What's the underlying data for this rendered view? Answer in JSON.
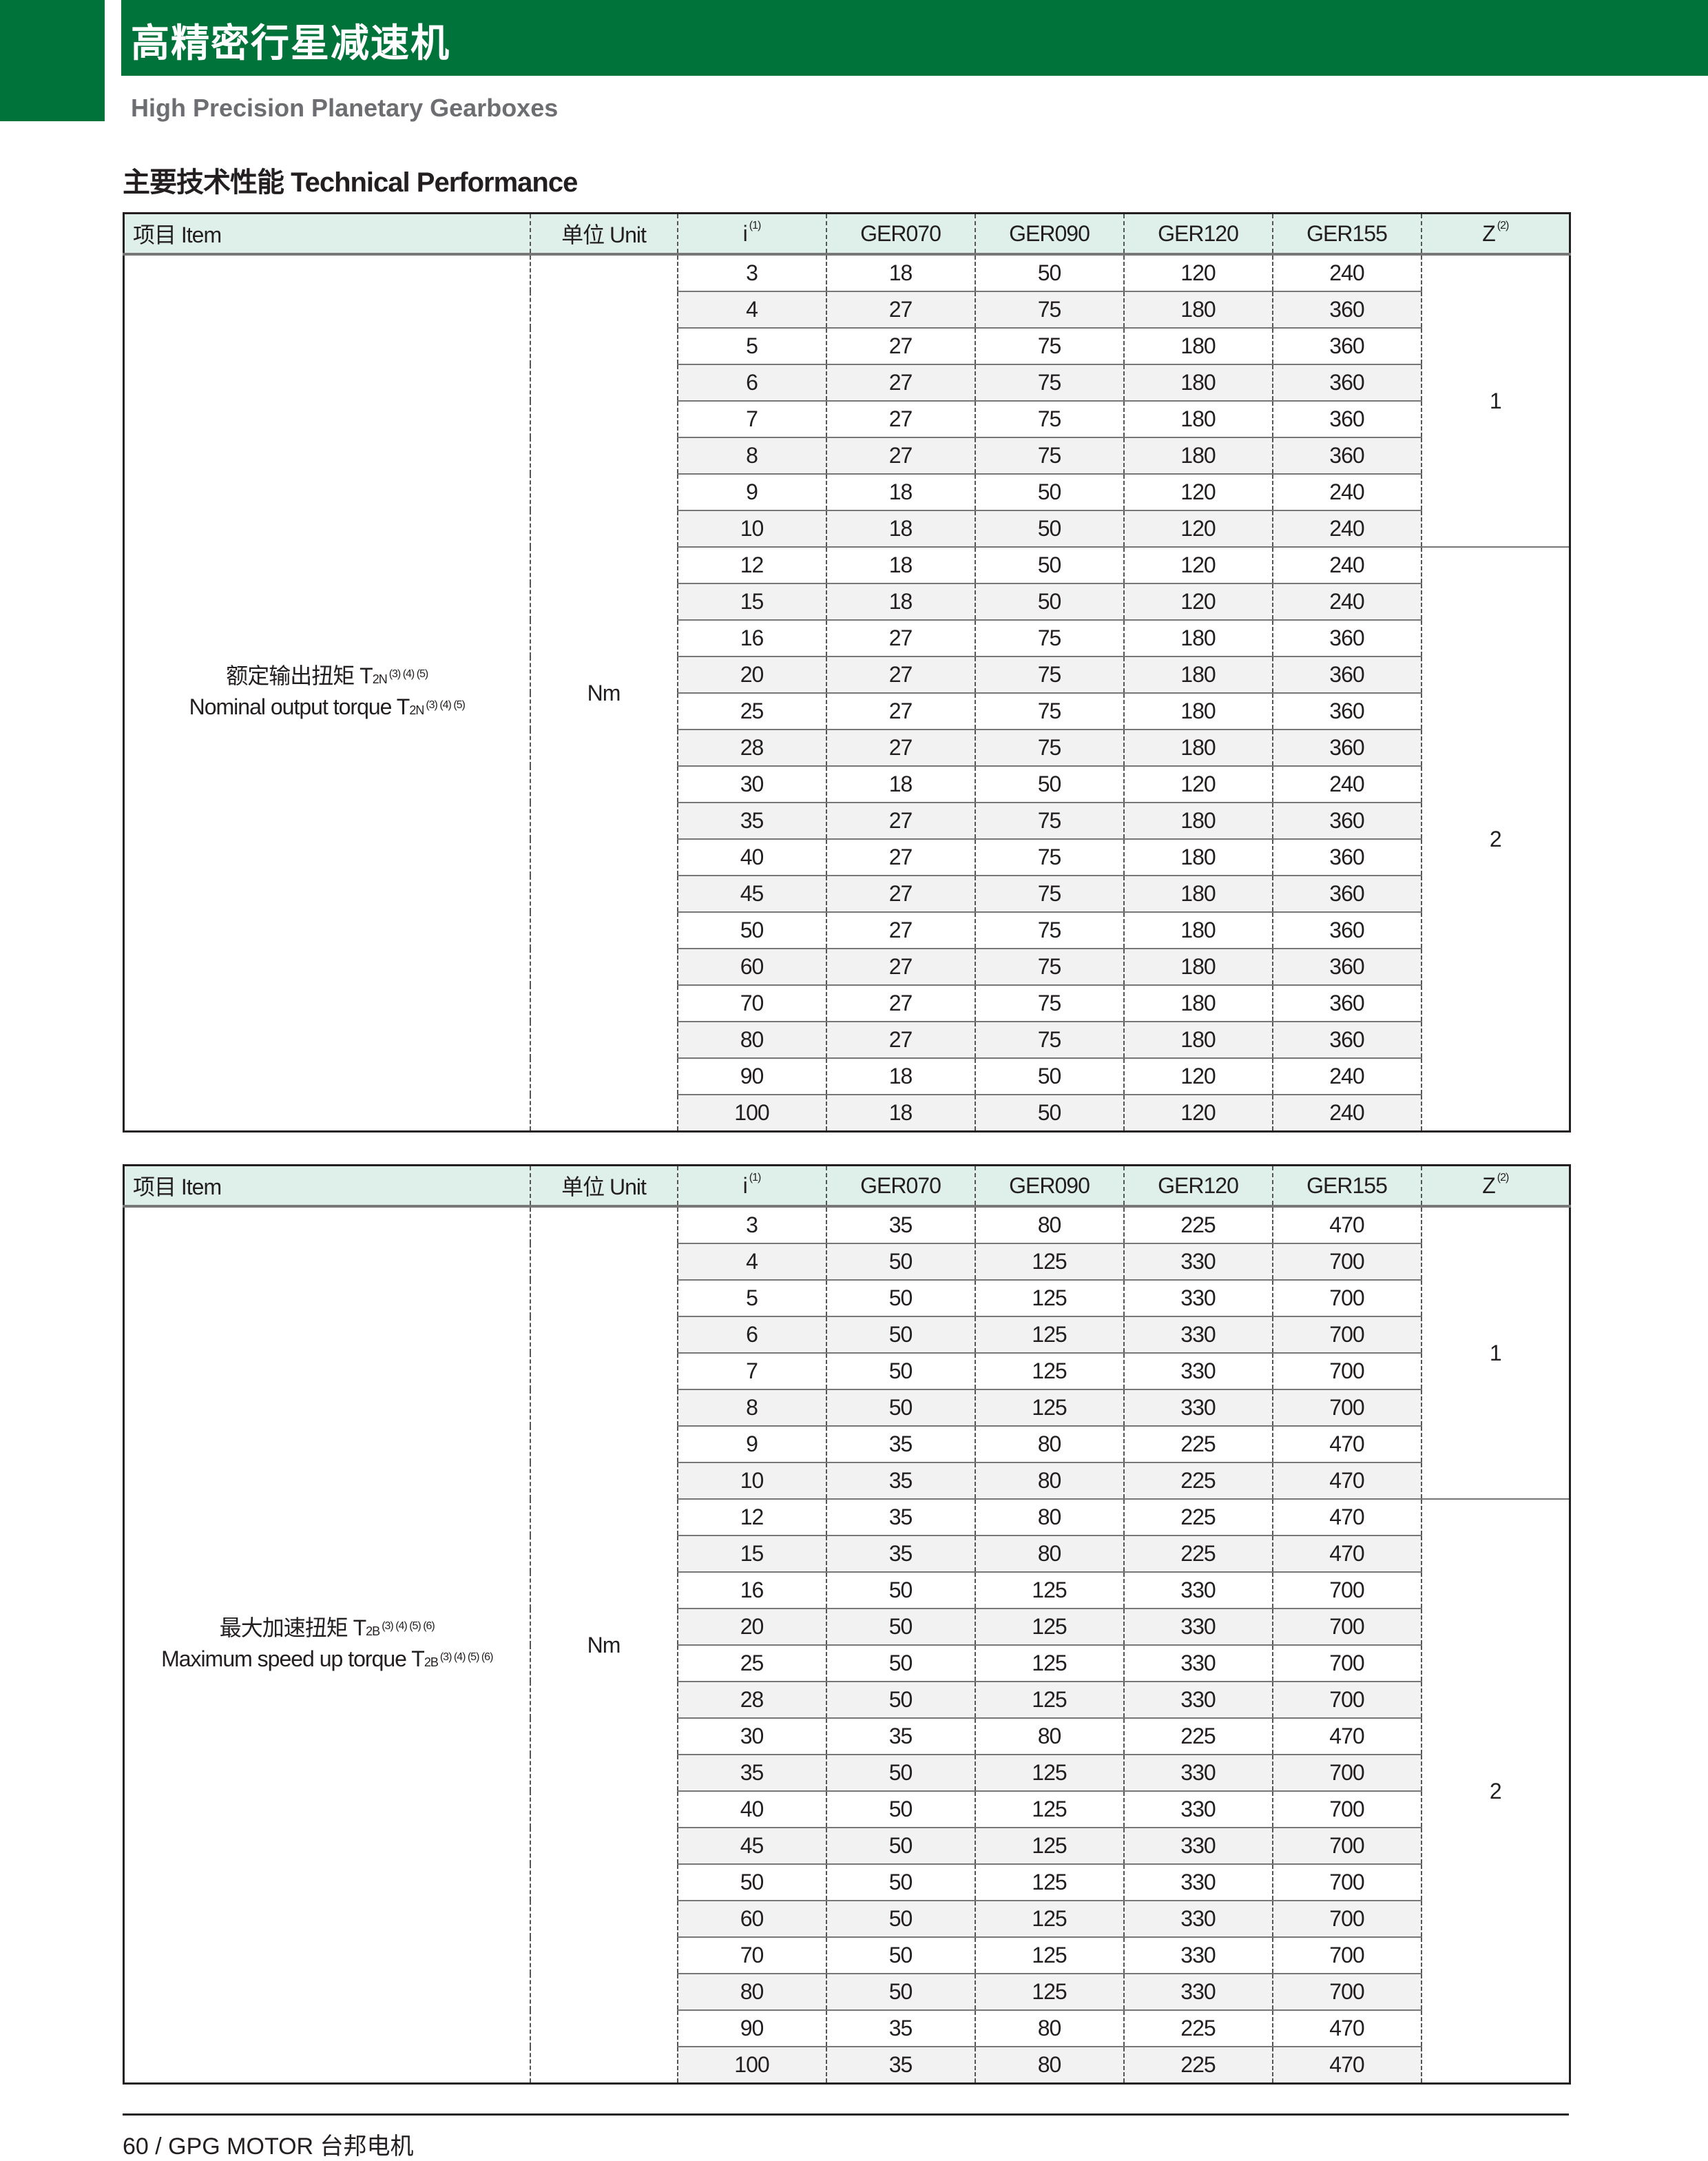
{
  "header": {
    "title": "高精密行星减速机",
    "subtitle": "High Precision Planetary Gearboxes",
    "section_title": "主要技术性能 Technical Performance",
    "brand_color": "#00733a"
  },
  "columns": {
    "item": "项目 Item",
    "unit": "单位 Unit",
    "i": "i",
    "i_note": "(1)",
    "models": [
      "GER070",
      "GER090",
      "GER120",
      "GER155"
    ],
    "z": "Z",
    "z_note": "(2)"
  },
  "tables": [
    {
      "item_cn": "额定输出扭矩 T",
      "item_en": "Nominal output torque T",
      "sub": "2N",
      "notes": "(3) (4) (5)",
      "unit": "Nm",
      "z_groups": [
        {
          "value": "1",
          "rows": 8
        },
        {
          "value": "2",
          "rows": 16
        }
      ],
      "rows": [
        [
          "3",
          "18",
          "50",
          "120",
          "240"
        ],
        [
          "4",
          "27",
          "75",
          "180",
          "360"
        ],
        [
          "5",
          "27",
          "75",
          "180",
          "360"
        ],
        [
          "6",
          "27",
          "75",
          "180",
          "360"
        ],
        [
          "7",
          "27",
          "75",
          "180",
          "360"
        ],
        [
          "8",
          "27",
          "75",
          "180",
          "360"
        ],
        [
          "9",
          "18",
          "50",
          "120",
          "240"
        ],
        [
          "10",
          "18",
          "50",
          "120",
          "240"
        ],
        [
          "12",
          "18",
          "50",
          "120",
          "240"
        ],
        [
          "15",
          "18",
          "50",
          "120",
          "240"
        ],
        [
          "16",
          "27",
          "75",
          "180",
          "360"
        ],
        [
          "20",
          "27",
          "75",
          "180",
          "360"
        ],
        [
          "25",
          "27",
          "75",
          "180",
          "360"
        ],
        [
          "28",
          "27",
          "75",
          "180",
          "360"
        ],
        [
          "30",
          "18",
          "50",
          "120",
          "240"
        ],
        [
          "35",
          "27",
          "75",
          "180",
          "360"
        ],
        [
          "40",
          "27",
          "75",
          "180",
          "360"
        ],
        [
          "45",
          "27",
          "75",
          "180",
          "360"
        ],
        [
          "50",
          "27",
          "75",
          "180",
          "360"
        ],
        [
          "60",
          "27",
          "75",
          "180",
          "360"
        ],
        [
          "70",
          "27",
          "75",
          "180",
          "360"
        ],
        [
          "80",
          "27",
          "75",
          "180",
          "360"
        ],
        [
          "90",
          "18",
          "50",
          "120",
          "240"
        ],
        [
          "100",
          "18",
          "50",
          "120",
          "240"
        ]
      ]
    },
    {
      "item_cn": "最大加速扭矩 T",
      "item_en": "Maximum speed up torque T",
      "sub": "2B",
      "notes": "(3) (4) (5) (6)",
      "unit": "Nm",
      "z_groups": [
        {
          "value": "1",
          "rows": 8
        },
        {
          "value": "2",
          "rows": 16
        }
      ],
      "rows": [
        [
          "3",
          "35",
          "80",
          "225",
          "470"
        ],
        [
          "4",
          "50",
          "125",
          "330",
          "700"
        ],
        [
          "5",
          "50",
          "125",
          "330",
          "700"
        ],
        [
          "6",
          "50",
          "125",
          "330",
          "700"
        ],
        [
          "7",
          "50",
          "125",
          "330",
          "700"
        ],
        [
          "8",
          "50",
          "125",
          "330",
          "700"
        ],
        [
          "9",
          "35",
          "80",
          "225",
          "470"
        ],
        [
          "10",
          "35",
          "80",
          "225",
          "470"
        ],
        [
          "12",
          "35",
          "80",
          "225",
          "470"
        ],
        [
          "15",
          "35",
          "80",
          "225",
          "470"
        ],
        [
          "16",
          "50",
          "125",
          "330",
          "700"
        ],
        [
          "20",
          "50",
          "125",
          "330",
          "700"
        ],
        [
          "25",
          "50",
          "125",
          "330",
          "700"
        ],
        [
          "28",
          "50",
          "125",
          "330",
          "700"
        ],
        [
          "30",
          "35",
          "80",
          "225",
          "470"
        ],
        [
          "35",
          "50",
          "125",
          "330",
          "700"
        ],
        [
          "40",
          "50",
          "125",
          "330",
          "700"
        ],
        [
          "45",
          "50",
          "125",
          "330",
          "700"
        ],
        [
          "50",
          "50",
          "125",
          "330",
          "700"
        ],
        [
          "60",
          "50",
          "125",
          "330",
          "700"
        ],
        [
          "70",
          "50",
          "125",
          "330",
          "700"
        ],
        [
          "80",
          "50",
          "125",
          "330",
          "700"
        ],
        [
          "90",
          "35",
          "80",
          "225",
          "470"
        ],
        [
          "100",
          "35",
          "80",
          "225",
          "470"
        ]
      ]
    }
  ],
  "footer": {
    "text": "60  /  GPG MOTOR 台邦电机"
  }
}
